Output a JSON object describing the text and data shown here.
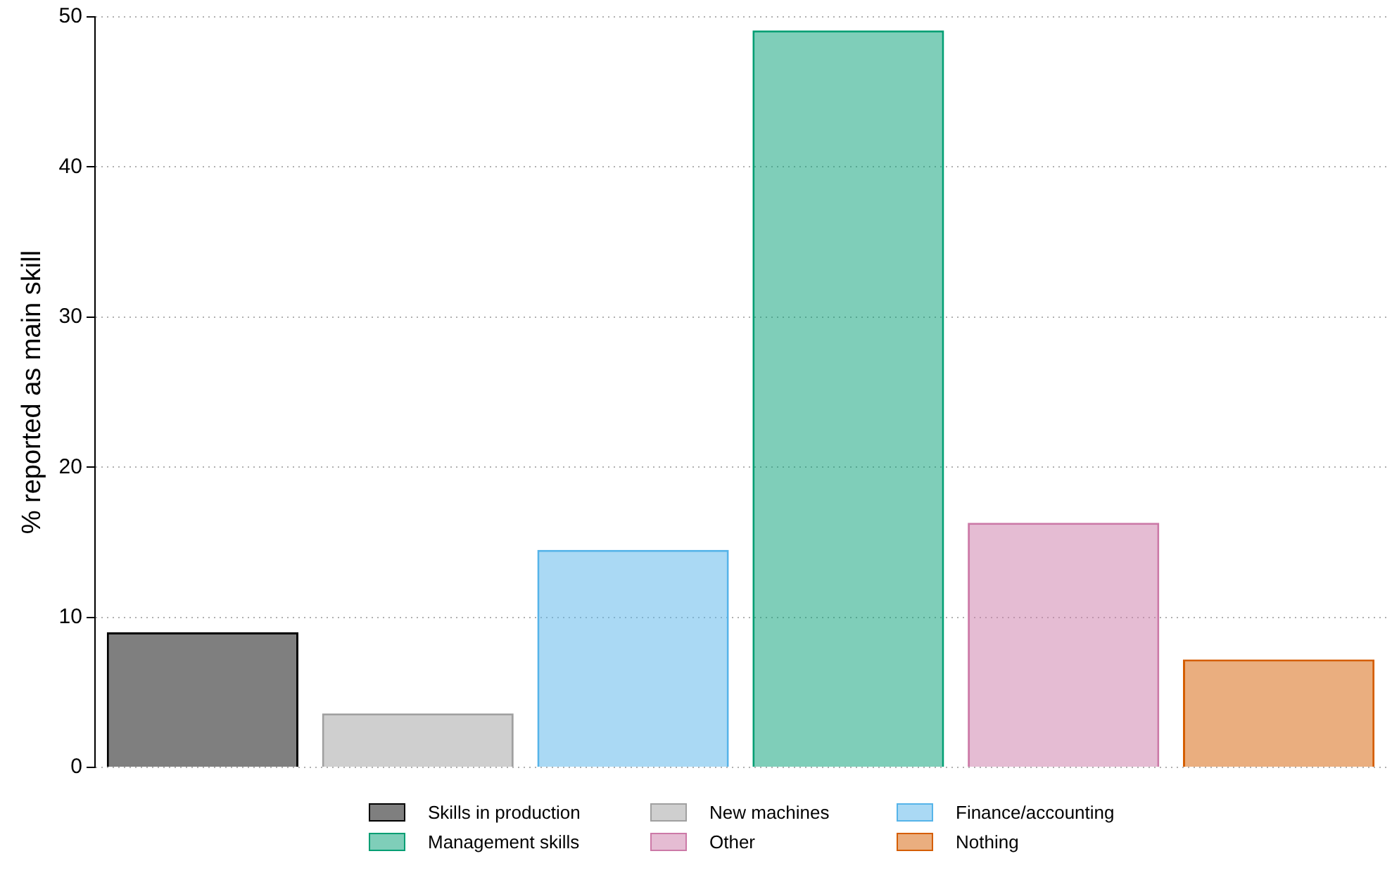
{
  "chart_data": {
    "type": "bar",
    "ylabel": "% reported as main skill",
    "categories": [
      null,
      null,
      null,
      null,
      null,
      null
    ],
    "series": [
      {
        "name": "Skills in production",
        "color": "#000000",
        "values": [
          9.0,
          null,
          null,
          null,
          null,
          null
        ]
      },
      {
        "name": "New machines",
        "color": "#a0a0a0",
        "values": [
          null,
          3.6,
          null,
          null,
          null,
          null
        ]
      },
      {
        "name": "Finance/accounting",
        "color": "#56b4e9",
        "values": [
          null,
          null,
          14.5,
          null,
          null,
          null
        ]
      },
      {
        "name": "Management skills",
        "color": "#009e73",
        "values": [
          null,
          null,
          null,
          49.1,
          null,
          null
        ]
      },
      {
        "name": "Other",
        "color": "#cc79a7",
        "values": [
          null,
          null,
          null,
          null,
          16.3,
          null
        ]
      },
      {
        "name": "Nothing",
        "color": "#d55e00",
        "values": [
          null,
          null,
          null,
          null,
          null,
          7.2
        ]
      }
    ],
    "ylim": [
      0,
      50
    ],
    "yticks": [
      0,
      10,
      20,
      30,
      40,
      50
    ],
    "grid": "y",
    "legend": "bottom"
  }
}
